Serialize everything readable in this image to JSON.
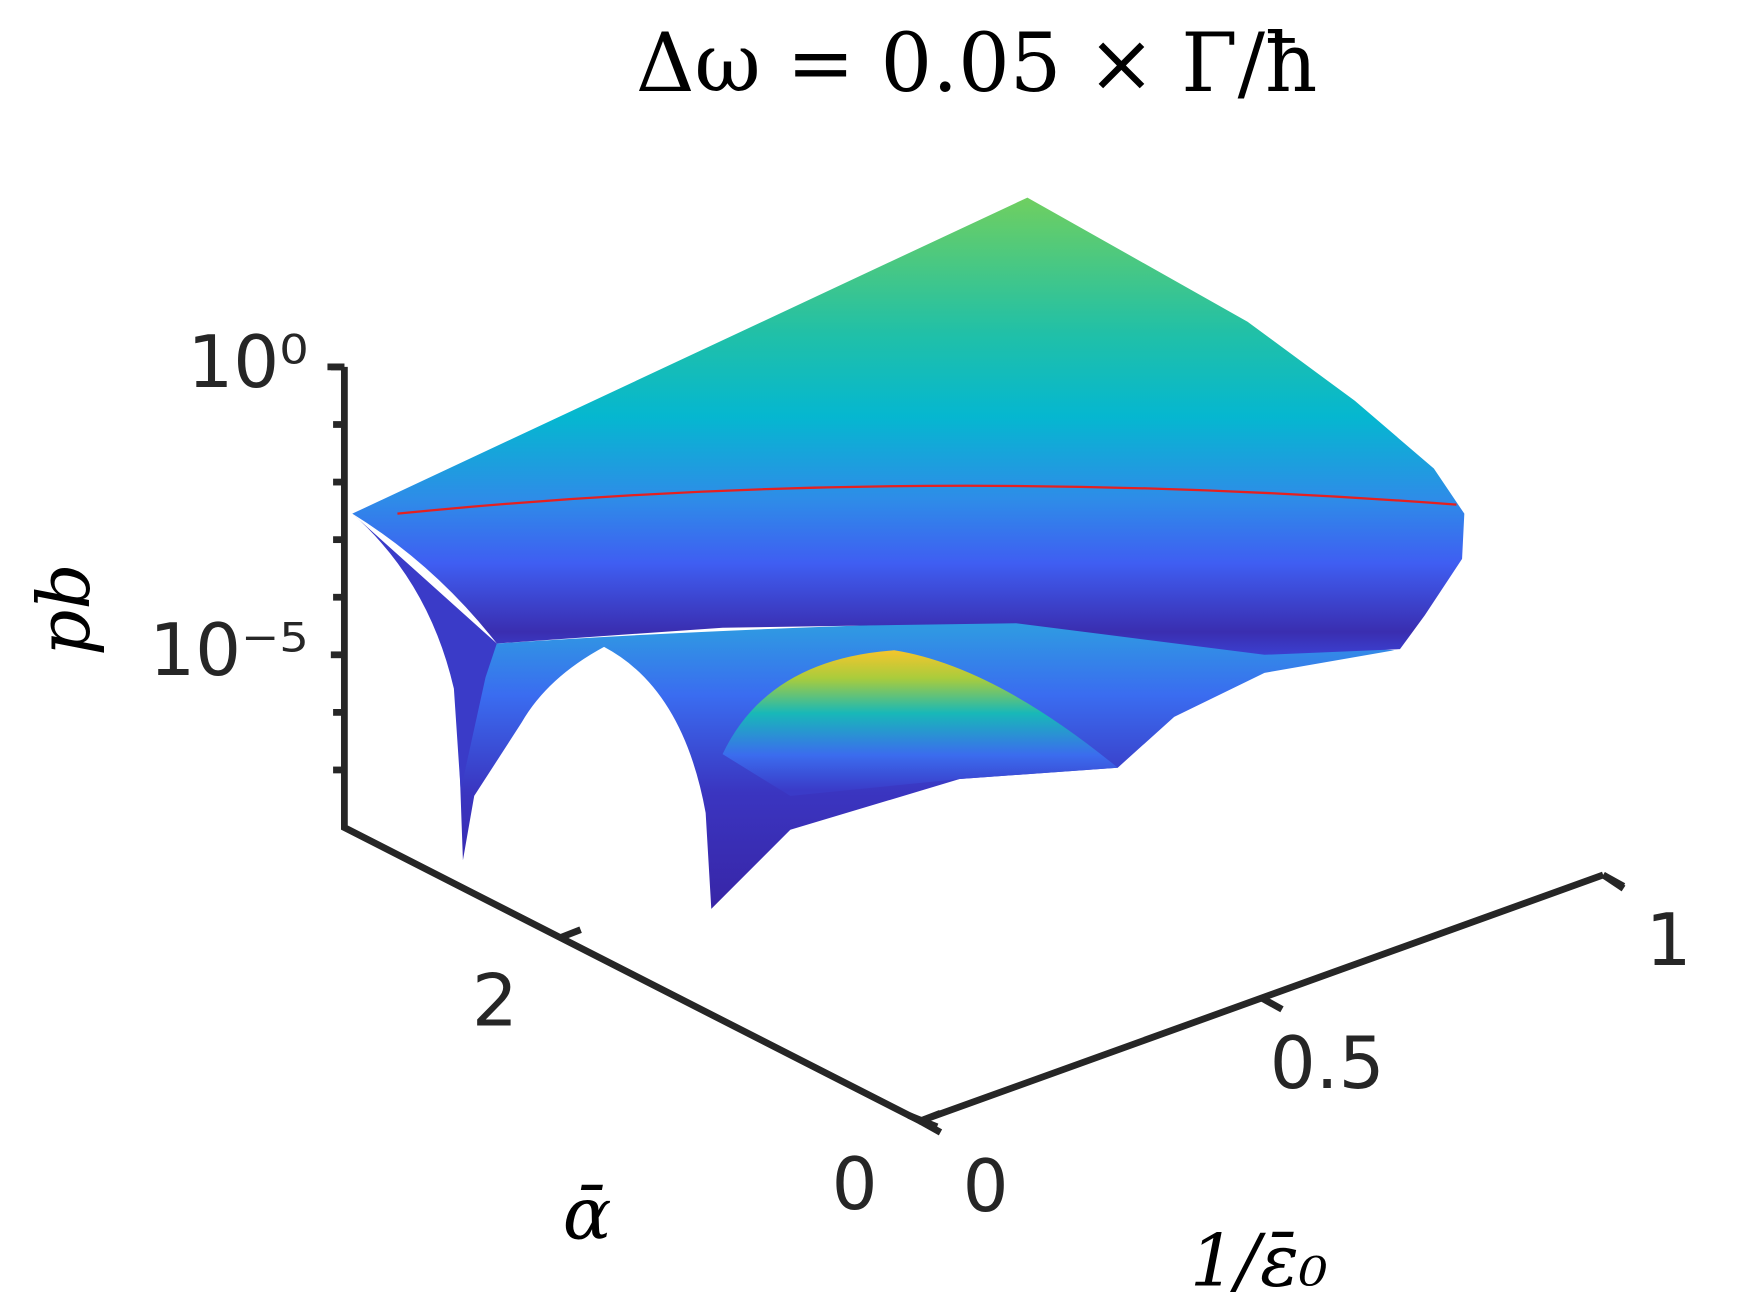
{
  "chart_data": {
    "type": "surface",
    "title": "Δω = 0.05 × Γ/ħ",
    "xlabel": "1/ε̄₀",
    "ylabel": "ᾱ",
    "zlabel": "pb",
    "xlim": [
      0,
      1
    ],
    "xticks": [
      0,
      0.5,
      1
    ],
    "ylim": [
      0,
      3.2
    ],
    "yticks": [
      0,
      2
    ],
    "zlim": [
      1e-08,
      1
    ],
    "zscale": "log",
    "zticks": [
      {
        "value": 1,
        "label": "10⁰"
      },
      {
        "value": 1e-05,
        "label": "10⁻⁵"
      }
    ],
    "zminorticks": [
      0.1,
      0.01,
      0.001,
      0.0001,
      1e-06,
      1e-07
    ]
  }
}
